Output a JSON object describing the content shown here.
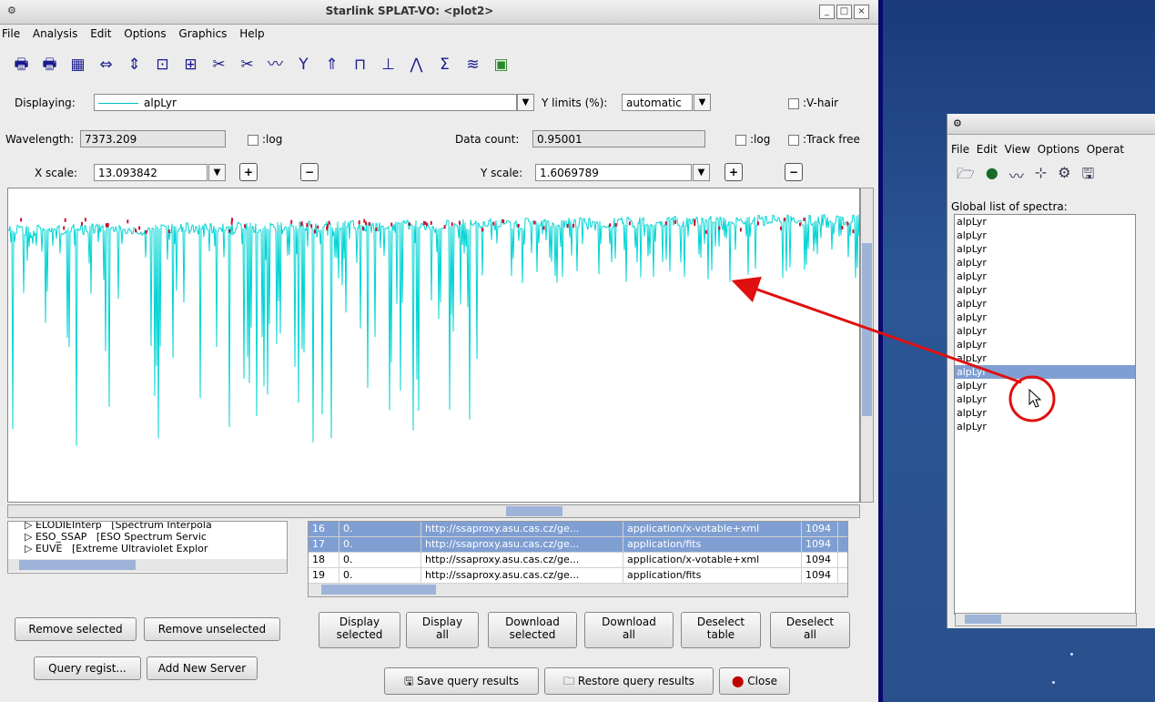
{
  "main_window": {
    "title": "Starlink SPLAT-VO: <plot2>",
    "menu": [
      "File",
      "Analysis",
      "Edit",
      "Options",
      "Graphics",
      "Help"
    ],
    "toolbar_icons": [
      "print-icon",
      "print-postscript-icon",
      "fits-icon",
      "fit-width-icon",
      "fit-height-icon",
      "zoom-icon",
      "grid-icon",
      "cut-icon",
      "cut-all-icon",
      "line-fit-icon",
      "stack-icon",
      "up-icon",
      "rectangle-icon",
      "units-icon",
      "peak-icon",
      "sigma-icon",
      "statistics-icon",
      "image-icon"
    ],
    "displaying_label": "Displaying:",
    "displaying_value": "alpLyr",
    "ylimits_label": "Y limits (%):",
    "ylimits_value": "automatic",
    "vhair_label": ":V-hair",
    "wavelength_label": "Wavelength:",
    "wavelength_value": "7373.209",
    "log_label_1": ":log",
    "datacount_label": "Data count:",
    "datacount_value": "0.95001",
    "log_label_2": ":log",
    "track_label": ":Track free",
    "xscale_label": "X scale:",
    "xscale_value": "13.093842",
    "yscale_label": "Y scale:",
    "yscale_value": "1.6069789",
    "plus": "+",
    "minus": "−"
  },
  "servers": [
    {
      "name": "ELODIEInterp",
      "desc": "[Spectrum Interpola"
    },
    {
      "name": "ESO_SSAP",
      "desc": "[ESO Spectrum Servic"
    },
    {
      "name": "EUVE",
      "desc": "[Extreme Ultraviolet Explor"
    }
  ],
  "results": [
    {
      "id": "16",
      "val": "0.",
      "url": "http://ssaproxy.asu.cas.cz/ge...",
      "format": "application/x-votable+xml",
      "size": "1094",
      "selected": true
    },
    {
      "id": "17",
      "val": "0.",
      "url": "http://ssaproxy.asu.cas.cz/ge...",
      "format": "application/fits",
      "size": "1094",
      "selected": true
    },
    {
      "id": "18",
      "val": "0.",
      "url": "http://ssaproxy.asu.cas.cz/ge...",
      "format": "application/x-votable+xml",
      "size": "1094",
      "selected": false
    },
    {
      "id": "19",
      "val": "0.",
      "url": "http://ssaproxy.asu.cas.cz/ge...",
      "format": "application/fits",
      "size": "1094",
      "selected": false
    }
  ],
  "buttons": {
    "display_selected": [
      "Display",
      "selected"
    ],
    "display_all": [
      "Display",
      "all"
    ],
    "download_selected": [
      "Download",
      "selected"
    ],
    "download_all": [
      "Download",
      "all"
    ],
    "deselect_table": [
      "Deselect",
      "table"
    ],
    "deselect_all": [
      "Deselect",
      "all"
    ],
    "remove_selected": "Remove selected",
    "remove_unselected": "Remove unselected",
    "query_registry": "Query regist...",
    "add_server": "Add New Server",
    "save_results": "Save query results",
    "restore_results": "Restore query results",
    "close": "Close"
  },
  "side_window": {
    "menu": [
      "File",
      "Edit",
      "View",
      "Options",
      "Operat"
    ],
    "list_label": "Global list of spectra:",
    "spectra": [
      "alpLyr",
      "alpLyr",
      "alpLyr",
      "alpLyr",
      "alpLyr",
      "alpLyr",
      "alpLyr",
      "alpLyr",
      "alpLyr",
      "alpLyr",
      "alpLyr",
      "alpLyr",
      "alpLyr",
      "alpLyr",
      "alpLyr",
      "alpLyr"
    ],
    "selected_index": 11
  },
  "colors": {
    "spectrum": "#00d4d4",
    "spectrum_marks": "#d01030",
    "selection": "#7f9fd3",
    "annotation": "#e01010"
  }
}
